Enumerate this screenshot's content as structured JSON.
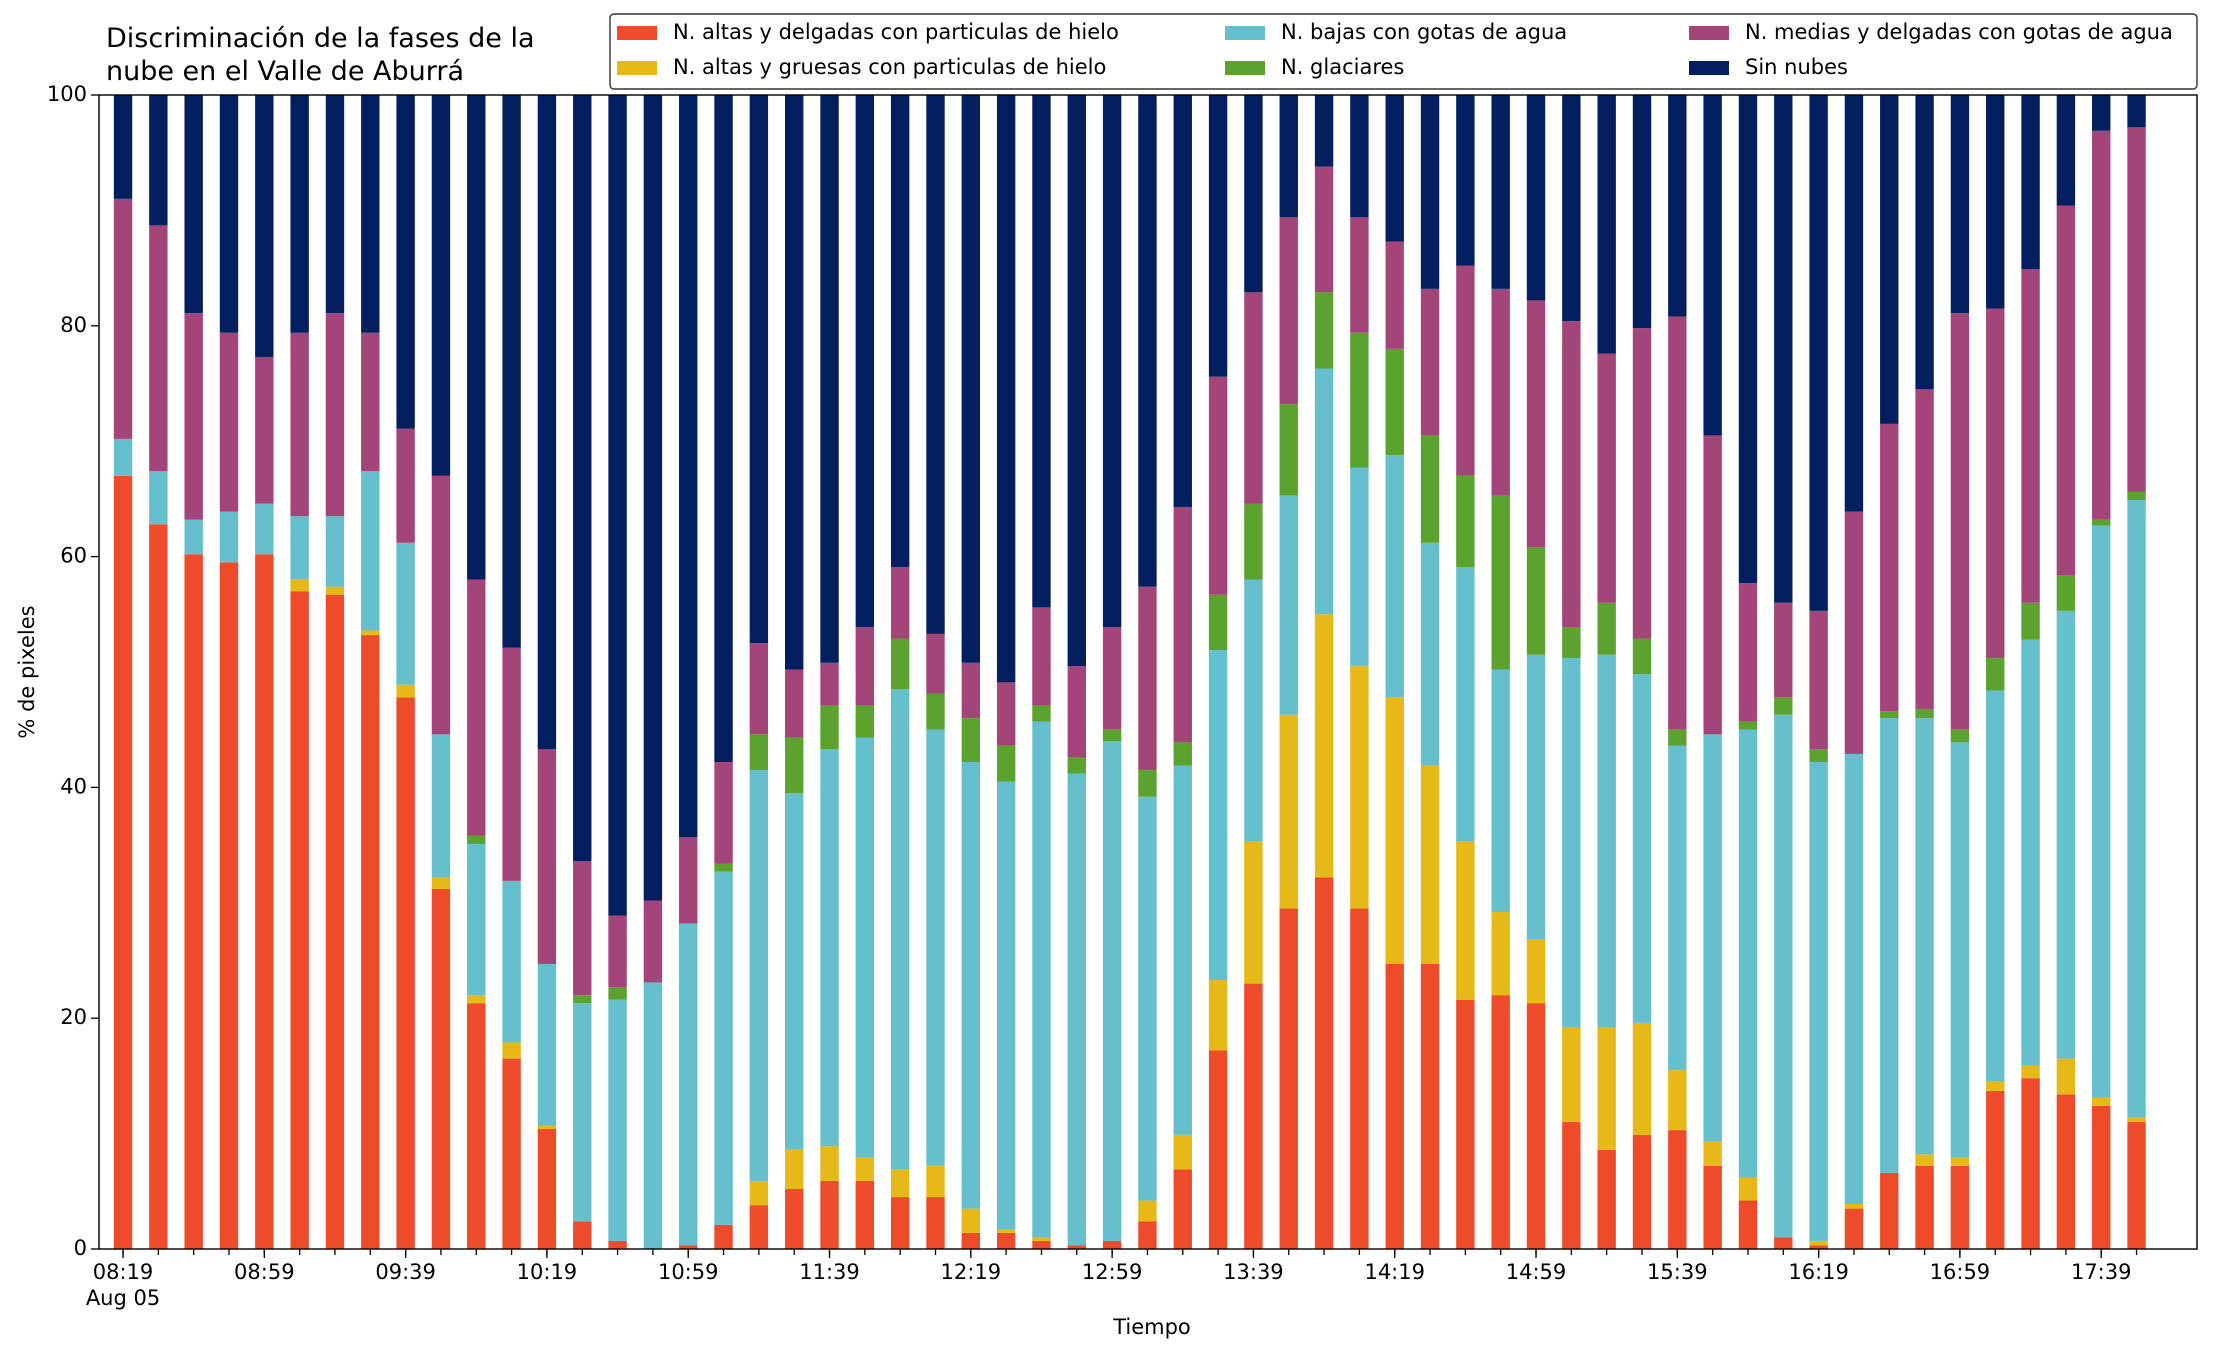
{
  "chart_data": {
    "type": "stacked_bar",
    "title": "Discriminación de la fases de la\nnube en el Valle de Aburrá",
    "x_label": "Tiempo",
    "y_label": "% de pixeles",
    "x_date_label": "Aug 05",
    "categories": [
      "08:19",
      null,
      null,
      null,
      "08:59",
      null,
      null,
      null,
      "09:39",
      null,
      null,
      null,
      "10:19",
      null,
      null,
      null,
      "10:59",
      null,
      null,
      null,
      "11:39",
      null,
      null,
      null,
      "12:19",
      null,
      null,
      null,
      "12:59",
      null,
      null,
      null,
      "13:39",
      null,
      null,
      null,
      "14:19",
      null,
      null,
      null,
      "14:59",
      null,
      null,
      null,
      "15:39",
      null,
      null,
      null,
      "16:19",
      null,
      null,
      null,
      "16:59",
      null,
      null,
      null,
      "17:39",
      null
    ],
    "ylim": [
      0,
      100
    ],
    "yticks": [
      0,
      20,
      40,
      60,
      80,
      100
    ],
    "legend": "top-right",
    "series": [
      {
        "name": "N. altas y delgadas con particulas de hielo",
        "color": "#ee4b2b",
        "values": [
          67,
          62.8,
          60.2,
          59.5,
          60.2,
          57,
          56.7,
          53.2,
          47.8,
          31.2,
          21.3,
          16.5,
          10.4,
          2.4,
          0.7,
          0,
          0.3,
          2.1,
          3.8,
          5.2,
          5.9,
          5.9,
          4.5,
          4.5,
          1.4,
          1.4,
          0.7,
          0.3,
          0.7,
          2.4,
          6.9,
          17.2,
          23,
          29.5,
          32.2,
          29.5,
          24.7,
          24.7,
          21.6,
          22,
          21.3,
          11,
          8.6,
          9.9,
          10.3,
          7.2,
          4.2,
          1.0,
          0.3,
          3.5,
          6.6,
          7.2,
          7.2,
          13.7,
          14.8,
          13.4,
          12.4,
          11
        ]
      },
      {
        "name": "N. altas y gruesas con particulas de hielo",
        "color": "#e6b818",
        "values": [
          0,
          0,
          0,
          0,
          0,
          1.0,
          0.7,
          0.4,
          1.1,
          1.0,
          0.7,
          1.4,
          0.3,
          0,
          0,
          0,
          0,
          0,
          2.1,
          3.4,
          3.0,
          2.0,
          2.4,
          2.7,
          2.1,
          0.3,
          0.3,
          0,
          0,
          1.8,
          3.0,
          6.1,
          12.3,
          16.8,
          22.8,
          21,
          23.1,
          17.2,
          13.7,
          7.2,
          5.5,
          8.2,
          10.6,
          9.7,
          5.2,
          2.1,
          2.0,
          0,
          0.4,
          0.4,
          0,
          1.0,
          0.7,
          0.8,
          1.1,
          3.1,
          0.7,
          0.4
        ]
      },
      {
        "name": "N. bajas con gotas de agua",
        "color": "#66bfcc",
        "values": [
          3.2,
          4.6,
          3.0,
          4.4,
          4.4,
          5.5,
          6.1,
          13.8,
          12.3,
          12.4,
          13.1,
          14,
          14,
          18.9,
          20.9,
          23.1,
          27.9,
          30.6,
          35.6,
          30.9,
          34.4,
          36.4,
          41.6,
          37.8,
          38.7,
          38.8,
          44.7,
          40.9,
          43.3,
          35,
          32,
          28.6,
          22.7,
          19,
          21.3,
          17.2,
          21,
          19.3,
          23.8,
          21,
          24.7,
          32,
          32.3,
          30.2,
          28.1,
          35.3,
          38.8,
          45.3,
          41.5,
          39,
          39.4,
          37.8,
          36,
          33.9,
          36.9,
          38.8,
          49.6,
          53.5
        ]
      },
      {
        "name": "N. glaciares",
        "color": "#5ba22f",
        "values": [
          0,
          0,
          0,
          0,
          0,
          0,
          0,
          0,
          0,
          0,
          0.7,
          0,
          0,
          0.7,
          1.1,
          0,
          0,
          0.7,
          3.1,
          4.8,
          3.8,
          2.8,
          4.4,
          3.1,
          3.8,
          3.1,
          1.4,
          1.4,
          1.0,
          2.3,
          2.0,
          4.8,
          6.6,
          7.9,
          6.6,
          11.7,
          9.2,
          9.3,
          7.9,
          15.1,
          9.3,
          2.7,
          4.5,
          3.1,
          1.4,
          0,
          0.7,
          1.5,
          1.1,
          0,
          0.6,
          0.8,
          1.1,
          2.8,
          3.2,
          3.1,
          0.5,
          0.7
        ]
      },
      {
        "name": "N. medias y delgadas con gotas de agua",
        "color": "#a4457a",
        "values": [
          20.8,
          21.3,
          17.9,
          15.5,
          12.7,
          15.9,
          17.6,
          12,
          9.9,
          22.4,
          22.2,
          20.2,
          18.6,
          11.6,
          6.2,
          7.1,
          7.5,
          8.8,
          7.9,
          5.9,
          3.7,
          6.8,
          6.2,
          5.2,
          4.8,
          5.5,
          8.5,
          7.9,
          8.9,
          15.9,
          20.4,
          18.9,
          18.3,
          16.2,
          10.9,
          10,
          9.3,
          12.7,
          18.2,
          17.9,
          21.4,
          26.5,
          21.6,
          26.9,
          35.8,
          25.9,
          12,
          8.2,
          12,
          21,
          24.9,
          27.7,
          36.1,
          30.3,
          28.9,
          32,
          33.7,
          31.6
        ]
      },
      {
        "name": "Sin nubes",
        "color": "#041f60",
        "values": [
          9,
          11.3,
          18.9,
          20.6,
          22.7,
          20.6,
          18.9,
          20.6,
          28.9,
          33,
          42,
          47.9,
          56.7,
          66.4,
          71.1,
          69.8,
          64.3,
          57.8,
          47.5,
          49.8,
          49.2,
          46.1,
          40.9,
          46.7,
          49.2,
          50.9,
          44.4,
          49.5,
          46.1,
          42.6,
          35.7,
          24.4,
          17.1,
          10.6,
          6.2,
          10.6,
          12.7,
          16.8,
          14.8,
          16.8,
          17.8,
          19.6,
          22.4,
          20.2,
          19.2,
          29.5,
          42.3,
          44,
          44.7,
          36.1,
          28.5,
          25.5,
          18.9,
          18.5,
          15.1,
          9.6,
          3.1,
          2.8
        ]
      }
    ]
  }
}
